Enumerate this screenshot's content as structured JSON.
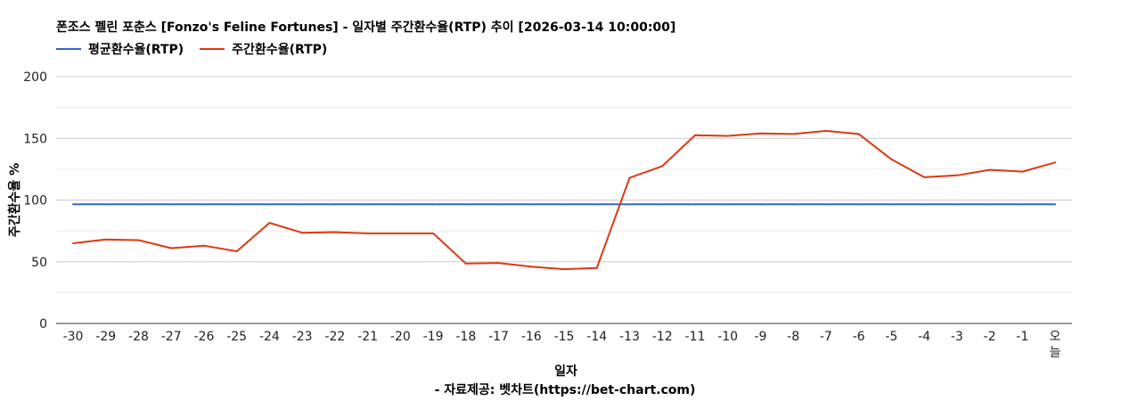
{
  "chart_data": {
    "type": "line",
    "title": "폰조스 펠린 포춘스 [Fonzo's Feline Fortunes] - 일자별 주간환수율(RTP) 추이 [2026-03-14 10:00:00]",
    "xlabel": "일자",
    "ylabel": "주간환수율 %",
    "ylim": [
      0,
      200
    ],
    "yticks": [
      "0",
      "50",
      "100",
      "150",
      "200"
    ],
    "grid": true,
    "legend_position": "top-left",
    "categories": [
      "-30",
      "-29",
      "-28",
      "-27",
      "-26",
      "-25",
      "-24",
      "-23",
      "-22",
      "-21",
      "-20",
      "-19",
      "-18",
      "-17",
      "-16",
      "-15",
      "-14",
      "-13",
      "-12",
      "-11",
      "-10",
      "-9",
      "-8",
      "-7",
      "-6",
      "-5",
      "-4",
      "-3",
      "-2",
      "-1",
      "오늘"
    ],
    "series": [
      {
        "name": "평균환수율(RTP)",
        "color": "#3366cc",
        "values": [
          96.5,
          96.5,
          96.5,
          96.5,
          96.5,
          96.5,
          96.5,
          96.5,
          96.5,
          96.5,
          96.5,
          96.5,
          96.5,
          96.5,
          96.5,
          96.5,
          96.5,
          96.5,
          96.5,
          96.5,
          96.5,
          96.5,
          96.5,
          96.5,
          96.5,
          96.5,
          96.5,
          96.5,
          96.5,
          96.5,
          96.5
        ]
      },
      {
        "name": "주간환수율(RTP)",
        "color": "#dc3912",
        "values": [
          65,
          68,
          67.5,
          61,
          63,
          58.5,
          81.5,
          73.5,
          74,
          73,
          73,
          73,
          48.5,
          49,
          46,
          44,
          45,
          118,
          127.5,
          152.5,
          152,
          154,
          153.5,
          156,
          153.5,
          133,
          118.5,
          120,
          124.5,
          123,
          130.5
        ]
      }
    ]
  },
  "footer": "- 자료제공: 벳차트(https://bet-chart.com)"
}
